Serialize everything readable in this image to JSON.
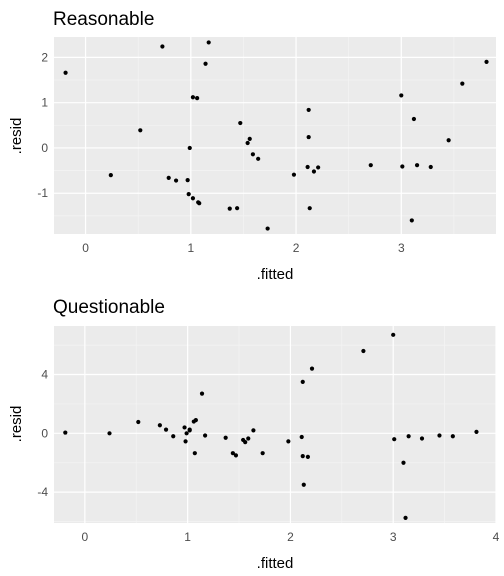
{
  "colors": {
    "panel_background": "#ebebeb",
    "grid_major": "#ffffff",
    "grid_minor": "#f4f4f4",
    "point": "#000000",
    "tick_text": "#4d4d4d"
  },
  "chart_data": [
    {
      "type": "scatter",
      "title": "Reasonable",
      "xlabel": ".fitted",
      "ylabel": ".resid",
      "xlim": [
        -0.3,
        3.9
      ],
      "ylim": [
        -1.9,
        2.45
      ],
      "x_ticks": [
        0,
        1,
        2,
        3
      ],
      "x_tick_labels": [
        "0",
        "1",
        "2",
        "3"
      ],
      "y_ticks": [
        -1,
        0,
        1,
        2
      ],
      "y_tick_labels": [
        "-1",
        "0",
        "1",
        "2"
      ],
      "grid": true,
      "x": [
        -0.19,
        0.24,
        0.52,
        0.73,
        0.79,
        0.86,
        0.97,
        0.98,
        0.99,
        1.02,
        1.02,
        1.06,
        1.07,
        1.08,
        1.14,
        1.17,
        1.37,
        1.44,
        1.47,
        1.54,
        1.56,
        1.59,
        1.64,
        1.73,
        1.98,
        2.11,
        2.12,
        2.12,
        2.13,
        2.17,
        2.21,
        2.71,
        3.0,
        3.01,
        3.1,
        3.12,
        3.15,
        3.28,
        3.45,
        3.58,
        3.81
      ],
      "y": [
        1.66,
        -0.6,
        0.39,
        2.24,
        -0.66,
        -0.72,
        -0.71,
        -1.02,
        0.0,
        1.12,
        -1.11,
        1.1,
        -1.2,
        -1.22,
        1.86,
        2.33,
        -1.34,
        -1.33,
        0.55,
        0.11,
        0.2,
        -0.14,
        -0.24,
        -1.78,
        -0.59,
        -0.42,
        0.84,
        0.24,
        -1.33,
        -0.52,
        -0.43,
        -0.38,
        1.16,
        -0.41,
        -1.6,
        0.64,
        -0.38,
        -0.42,
        0.17,
        1.42,
        1.9
      ]
    },
    {
      "type": "scatter",
      "title": "Questionable",
      "xlabel": ".fitted",
      "ylabel": ".resid",
      "xlim": [
        -0.3,
        4.0
      ],
      "ylim": [
        -6.1,
        7.3
      ],
      "x_ticks": [
        0,
        1,
        2,
        3,
        4
      ],
      "x_tick_labels": [
        "0",
        "1",
        "2",
        "3",
        "4"
      ],
      "y_ticks": [
        -4,
        0,
        4
      ],
      "y_tick_labels": [
        "-4",
        "0",
        "4"
      ],
      "grid": true,
      "x": [
        -0.19,
        0.24,
        0.52,
        0.73,
        0.79,
        0.86,
        0.97,
        0.98,
        0.99,
        1.02,
        1.02,
        1.06,
        1.07,
        1.08,
        1.14,
        1.17,
        1.37,
        1.44,
        1.47,
        1.54,
        1.56,
        1.59,
        1.64,
        1.73,
        1.98,
        2.11,
        2.12,
        2.12,
        2.13,
        2.17,
        2.21,
        2.71,
        3.0,
        3.01,
        3.1,
        3.12,
        3.15,
        3.28,
        3.45,
        3.58,
        3.81
      ],
      "y": [
        0.05,
        0.0,
        0.77,
        0.55,
        0.25,
        -0.2,
        0.4,
        -0.55,
        0.0,
        0.25,
        0.2,
        0.8,
        -1.35,
        0.9,
        2.7,
        -0.15,
        -0.3,
        -1.35,
        -1.5,
        -0.45,
        -0.6,
        -0.35,
        0.2,
        -1.35,
        -0.55,
        -0.25,
        -1.55,
        3.5,
        -3.5,
        -1.6,
        4.4,
        5.6,
        6.7,
        -0.4,
        -2.0,
        -5.75,
        -0.2,
        -0.35,
        -0.15,
        -0.2,
        0.1
      ]
    }
  ]
}
